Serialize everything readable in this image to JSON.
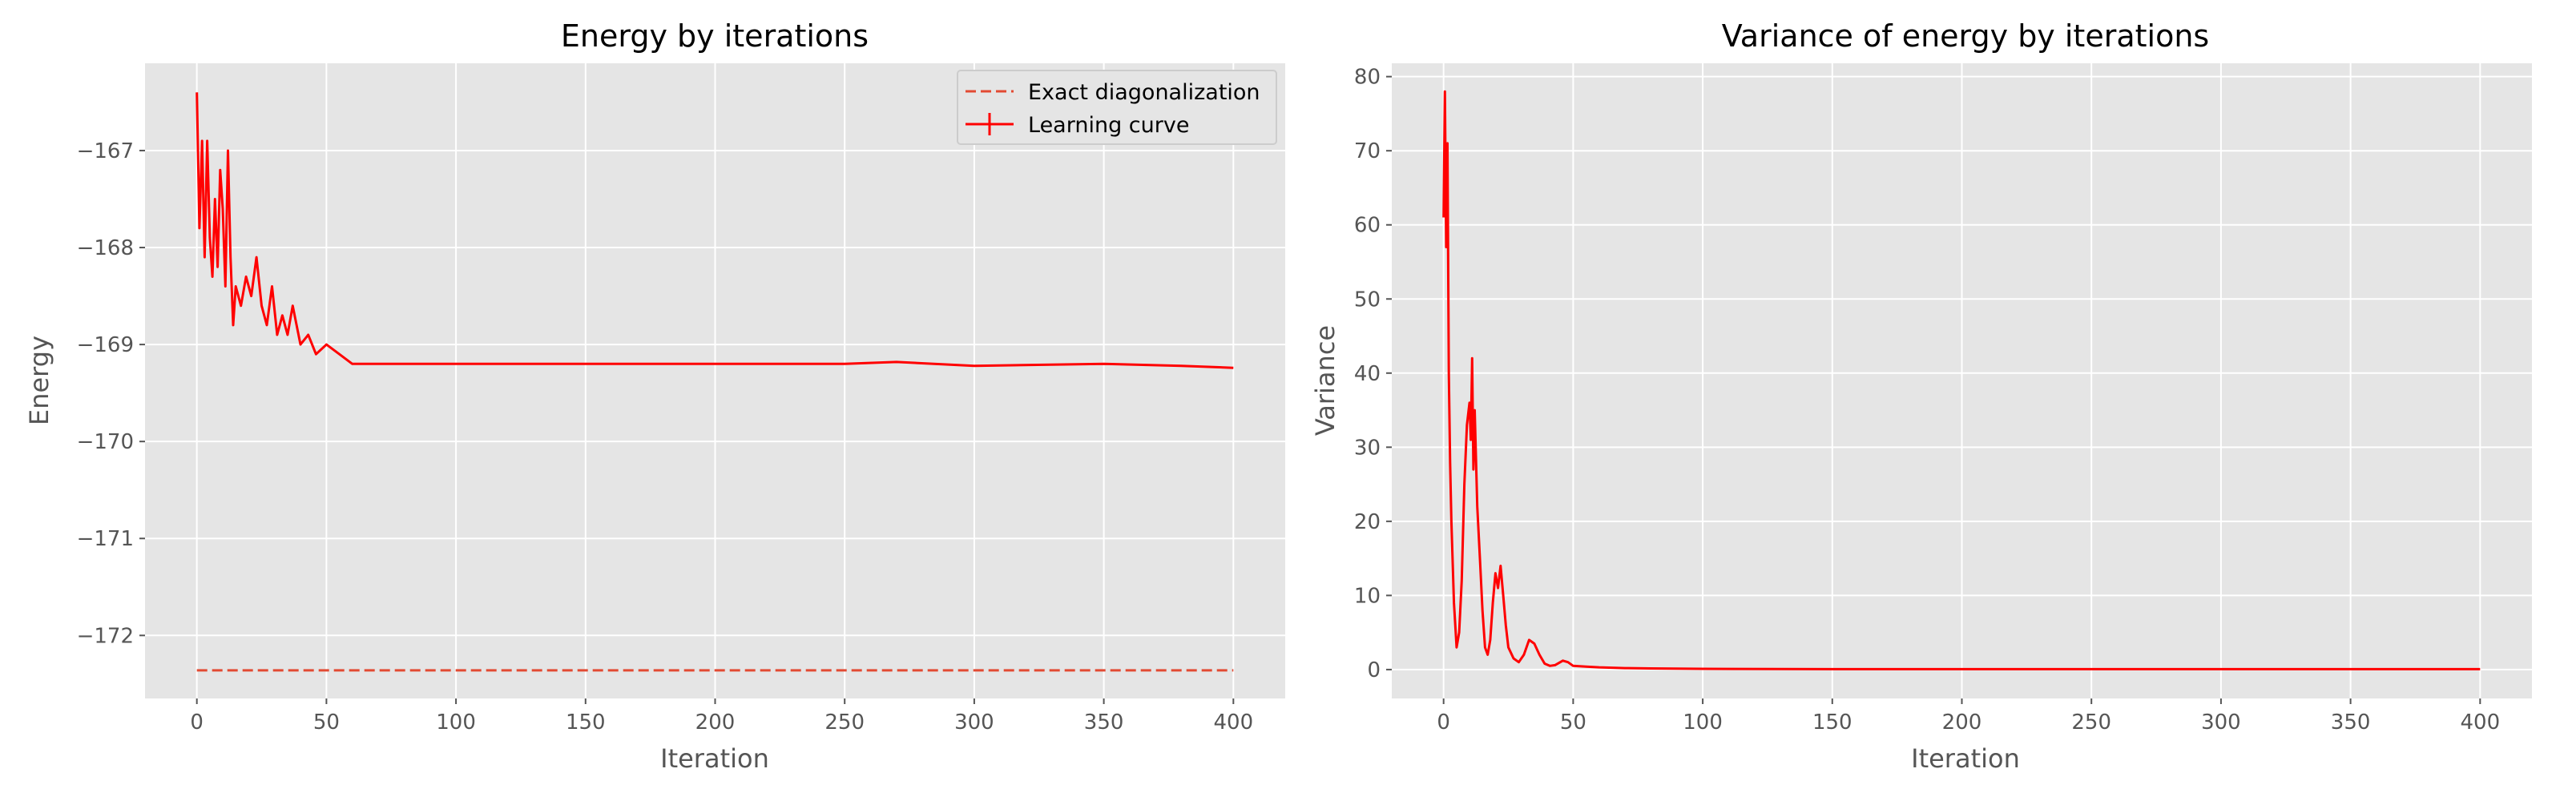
{
  "chart_data": [
    {
      "type": "line",
      "title": "Energy by iterations",
      "xlabel": "Iteration",
      "ylabel": "Energy",
      "xlim": [
        -20,
        420
      ],
      "ylim": [
        -172.65,
        -166.1
      ],
      "xticks": [
        0,
        50,
        100,
        150,
        200,
        250,
        300,
        350,
        400
      ],
      "xtick_labels": [
        "0",
        "50",
        "100",
        "150",
        "200",
        "250",
        "300",
        "350",
        "400"
      ],
      "yticks": [
        -172,
        -171,
        -170,
        -169,
        -168,
        -167
      ],
      "ytick_labels": [
        "−172",
        "−171",
        "−170",
        "−169",
        "−168",
        "−167"
      ],
      "grid": true,
      "legend_position": "top-right",
      "series": [
        {
          "name": "Exact diagonalization",
          "style": "dashed",
          "color": "#e24a33",
          "x": [
            0,
            400
          ],
          "y": [
            -172.36,
            -172.36
          ]
        },
        {
          "name": "Learning curve",
          "style": "solid",
          "color": "#ff0000",
          "x": [
            0,
            1,
            2,
            3,
            4,
            5,
            6,
            7,
            8,
            9,
            10,
            11,
            12,
            13,
            14,
            15,
            17,
            19,
            21,
            23,
            25,
            27,
            29,
            31,
            33,
            35,
            37,
            40,
            43,
            46,
            50,
            55,
            60,
            70,
            80,
            100,
            120,
            150,
            200,
            250,
            270,
            300,
            350,
            380,
            400
          ],
          "y": [
            -166.4,
            -167.8,
            -166.9,
            -168.1,
            -166.9,
            -167.9,
            -168.3,
            -167.5,
            -168.2,
            -167.2,
            -167.6,
            -168.4,
            -167.0,
            -168.1,
            -168.8,
            -168.4,
            -168.6,
            -168.3,
            -168.5,
            -168.1,
            -168.6,
            -168.8,
            -168.4,
            -168.9,
            -168.7,
            -168.9,
            -168.6,
            -169.0,
            -168.9,
            -169.1,
            -169.0,
            -169.1,
            -169.2,
            -169.2,
            -169.2,
            -169.2,
            -169.2,
            -169.2,
            -169.2,
            -169.2,
            -169.18,
            -169.22,
            -169.2,
            -169.22,
            -169.24
          ]
        }
      ]
    },
    {
      "type": "line",
      "title": "Variance of energy by iterations",
      "xlabel": "Iteration",
      "ylabel": "Variance",
      "xlim": [
        -20,
        420
      ],
      "ylim": [
        -3.9,
        81.8
      ],
      "xticks": [
        0,
        50,
        100,
        150,
        200,
        250,
        300,
        350,
        400
      ],
      "xtick_labels": [
        "0",
        "50",
        "100",
        "150",
        "200",
        "250",
        "300",
        "350",
        "400"
      ],
      "yticks": [
        0,
        10,
        20,
        30,
        40,
        50,
        60,
        70,
        80
      ],
      "ytick_labels": [
        "0",
        "10",
        "20",
        "30",
        "40",
        "50",
        "60",
        "70",
        "80"
      ],
      "grid": true,
      "series": [
        {
          "style": "solid",
          "color": "#ff0000",
          "x": [
            0,
            0.5,
            1,
            1.5,
            2,
            2.5,
            3,
            4,
            5,
            6,
            7,
            8,
            9,
            10,
            10.5,
            11,
            11.5,
            12,
            13,
            14,
            15,
            16,
            17,
            18,
            19,
            20,
            21,
            22,
            23,
            24,
            25,
            27,
            29,
            31,
            33,
            35,
            37,
            39,
            41,
            43,
            46,
            48,
            50,
            55,
            60,
            70,
            80,
            100,
            150,
            200,
            300,
            400
          ],
          "y": [
            61,
            78,
            57,
            71,
            40,
            28,
            20,
            9,
            3,
            5,
            12,
            25,
            33,
            36,
            31,
            42,
            27,
            35,
            22,
            15,
            8,
            3,
            2,
            4,
            9,
            13,
            11,
            14,
            10,
            6,
            3,
            1.5,
            1,
            2,
            4,
            3.5,
            2,
            0.8,
            0.5,
            0.6,
            1.2,
            1.0,
            0.5,
            0.4,
            0.3,
            0.2,
            0.15,
            0.1,
            0.05,
            0.05,
            0.05,
            0.05
          ]
        }
      ]
    }
  ]
}
